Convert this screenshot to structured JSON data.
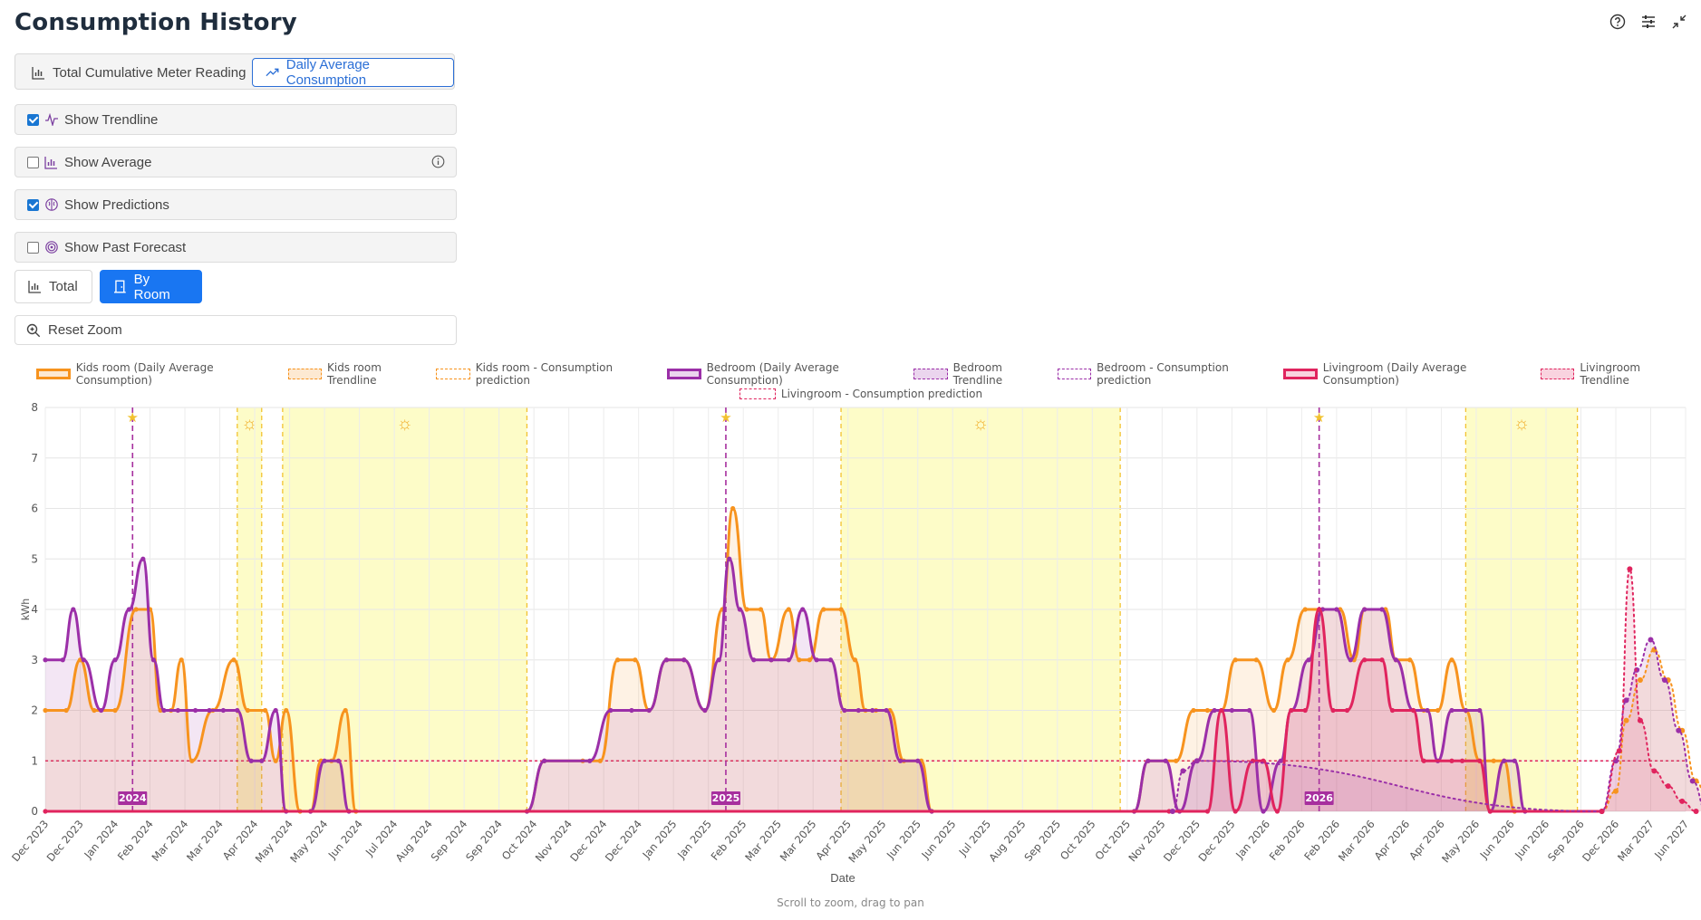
{
  "header": {
    "title": "Consumption History"
  },
  "top_icons": [
    "help-icon",
    "settings-sliders-icon",
    "collapse-icon"
  ],
  "view_mode": {
    "cumulative_label": "Total Cumulative Meter Reading",
    "daily_label": "Daily Average Consumption",
    "active": "daily"
  },
  "options": {
    "trendline": {
      "label": "Show Trendline",
      "checked": true
    },
    "average": {
      "label": "Show Average",
      "checked": false
    },
    "predictions": {
      "label": "Show Predictions",
      "checked": true
    },
    "past_forecast": {
      "label": "Show Past Forecast",
      "checked": false
    }
  },
  "grouping": {
    "total_label": "Total",
    "by_room_label": "By Room",
    "active": "by_room"
  },
  "reset_zoom_label": "Reset Zoom",
  "hint": "Scroll to zoom, drag to pan",
  "colors": {
    "kids": "#f7931e",
    "bedroom": "#9b2fa8",
    "living": "#e0245e",
    "summer_band": "#fdfcc8",
    "winter_line": "#a72f9e"
  },
  "chart_data": {
    "type": "line",
    "xlabel": "Date",
    "ylabel": "kWh",
    "ylim": [
      0,
      8
    ],
    "yticks": [
      0,
      1,
      2,
      3,
      4,
      5,
      6,
      7,
      8
    ],
    "x_ticks": [
      "Dec 2023",
      "Dec 2023",
      "Jan 2024",
      "Feb 2024",
      "Mar 2024",
      "Mar 2024",
      "Apr 2024",
      "May 2024",
      "May 2024",
      "Jun 2024",
      "Jul 2024",
      "Aug 2024",
      "Sep 2024",
      "Sep 2024",
      "Oct 2024",
      "Nov 2024",
      "Dec 2024",
      "Dec 2024",
      "Jan 2025",
      "Jan 2025",
      "Feb 2025",
      "Mar 2025",
      "Mar 2025",
      "Apr 2025",
      "May 2025",
      "Jun 2025",
      "Jun 2025",
      "Jul 2025",
      "Aug 2025",
      "Sep 2025",
      "Oct 2025",
      "Oct 2025",
      "Nov 2025",
      "Dec 2025",
      "Dec 2025",
      "Jan 2026",
      "Feb 2026",
      "Feb 2026",
      "Mar 2026",
      "Apr 2026",
      "Apr 2026",
      "May 2026",
      "Jun 2026",
      "Jun 2026",
      "Sep 2026",
      "Dec 2026",
      "Mar 2027",
      "Jun 2027"
    ],
    "grid": true,
    "legend_position": "top",
    "legend": [
      {
        "label": "Kids room (Daily Average Consumption)",
        "color": "#f7931e",
        "style": "solid"
      },
      {
        "label": "Kids room Trendline",
        "color": "#f7931e",
        "style": "dashed-fill"
      },
      {
        "label": "Kids room - Consumption prediction",
        "color": "#f7931e",
        "style": "dotted"
      },
      {
        "label": "Bedroom (Daily Average Consumption)",
        "color": "#9b2fa8",
        "style": "solid"
      },
      {
        "label": "Bedroom Trendline",
        "color": "#9b2fa8",
        "style": "dashed-fill"
      },
      {
        "label": "Bedroom - Consumption prediction",
        "color": "#9b2fa8",
        "style": "dotted"
      },
      {
        "label": "Livingroom (Daily Average Consumption)",
        "color": "#e0245e",
        "style": "solid"
      },
      {
        "label": "Livingroom Trendline",
        "color": "#e0245e",
        "style": "dashed-fill"
      },
      {
        "label": "Livingroom - Consumption prediction",
        "color": "#e0245e",
        "style": "dotted"
      }
    ],
    "year_markers": [
      {
        "label": "2024",
        "x": 2.5
      },
      {
        "label": "2025",
        "x": 19.5
      },
      {
        "label": "2026",
        "x": 36.5
      }
    ],
    "summer_bands": [
      [
        5.5,
        6.2
      ],
      [
        6.8,
        13.8
      ],
      [
        22.8,
        30.8
      ],
      [
        40.7,
        43.9
      ]
    ],
    "series": [
      {
        "name": "Kids room (Daily Average Consumption)",
        "color": "#f7931e",
        "points": [
          [
            0,
            2
          ],
          [
            0.6,
            2
          ],
          [
            1,
            3
          ],
          [
            1.4,
            2
          ],
          [
            2,
            2
          ],
          [
            2.6,
            4
          ],
          [
            3,
            4
          ],
          [
            3.3,
            2
          ],
          [
            3.6,
            2
          ],
          [
            3.9,
            3
          ],
          [
            4.2,
            1
          ],
          [
            4.8,
            2
          ],
          [
            5.4,
            3
          ],
          [
            5.8,
            2
          ],
          [
            6.3,
            2
          ],
          [
            6.6,
            1
          ],
          [
            6.9,
            2
          ],
          [
            7.3,
            0
          ],
          [
            7.6,
            0
          ],
          [
            7.9,
            1
          ],
          [
            8.2,
            1
          ],
          [
            8.6,
            2
          ],
          [
            8.9,
            0
          ],
          [
            13.8,
            0
          ],
          [
            14.3,
            1
          ],
          [
            15.4,
            1
          ],
          [
            15.9,
            1
          ],
          [
            16.4,
            3
          ],
          [
            16.9,
            3
          ],
          [
            17.3,
            2
          ],
          [
            17.8,
            3
          ],
          [
            18.3,
            3
          ],
          [
            18.9,
            2
          ],
          [
            19.4,
            4
          ],
          [
            19.7,
            6
          ],
          [
            20.1,
            4
          ],
          [
            20.5,
            4
          ],
          [
            20.8,
            3
          ],
          [
            21.3,
            4
          ],
          [
            21.6,
            3
          ],
          [
            21.9,
            3
          ],
          [
            22.3,
            4
          ],
          [
            22.8,
            4
          ],
          [
            23.2,
            3
          ],
          [
            23.5,
            2
          ],
          [
            23.8,
            2
          ],
          [
            24.2,
            2
          ],
          [
            24.6,
            1
          ],
          [
            25.1,
            1
          ],
          [
            25.4,
            0
          ],
          [
            31.2,
            0
          ],
          [
            31.6,
            1
          ],
          [
            32.4,
            1
          ],
          [
            32.9,
            2
          ],
          [
            33.3,
            2
          ],
          [
            33.7,
            2
          ],
          [
            34.1,
            3
          ],
          [
            34.7,
            3
          ],
          [
            35.2,
            2
          ],
          [
            35.6,
            3
          ],
          [
            36.1,
            4
          ],
          [
            36.6,
            4
          ],
          [
            37.1,
            4
          ],
          [
            37.5,
            3
          ],
          [
            37.8,
            4
          ],
          [
            38.4,
            4
          ],
          [
            38.7,
            3
          ],
          [
            39.1,
            3
          ],
          [
            39.5,
            2
          ],
          [
            39.9,
            2
          ],
          [
            40.3,
            3
          ],
          [
            40.7,
            2
          ],
          [
            41.1,
            1
          ],
          [
            41.5,
            1
          ],
          [
            41.8,
            1
          ],
          [
            42.1,
            0
          ],
          [
            44.6,
            0
          ]
        ]
      },
      {
        "name": "Bedroom (Daily Average Consumption)",
        "color": "#9b2fa8",
        "points": [
          [
            0,
            3
          ],
          [
            0.5,
            3
          ],
          [
            0.8,
            4
          ],
          [
            1.1,
            3
          ],
          [
            1.6,
            2
          ],
          [
            2,
            3
          ],
          [
            2.4,
            4
          ],
          [
            2.8,
            5
          ],
          [
            3.1,
            3
          ],
          [
            3.4,
            2
          ],
          [
            3.8,
            2
          ],
          [
            4.3,
            2
          ],
          [
            4.7,
            2
          ],
          [
            5.1,
            2
          ],
          [
            5.5,
            2
          ],
          [
            5.9,
            1
          ],
          [
            6.2,
            1
          ],
          [
            6.6,
            2
          ],
          [
            6.9,
            0
          ],
          [
            7.6,
            0
          ],
          [
            8,
            1
          ],
          [
            8.4,
            1
          ],
          [
            8.7,
            0
          ],
          [
            13.8,
            0
          ],
          [
            14.3,
            1
          ],
          [
            15.6,
            1
          ],
          [
            16.2,
            2
          ],
          [
            16.8,
            2
          ],
          [
            17.3,
            2
          ],
          [
            17.8,
            3
          ],
          [
            18.3,
            3
          ],
          [
            18.9,
            2
          ],
          [
            19.3,
            3
          ],
          [
            19.6,
            5
          ],
          [
            19.9,
            4
          ],
          [
            20.3,
            3
          ],
          [
            20.8,
            3
          ],
          [
            21.3,
            3
          ],
          [
            21.7,
            4
          ],
          [
            22.1,
            3
          ],
          [
            22.5,
            3
          ],
          [
            22.9,
            2
          ],
          [
            23.3,
            2
          ],
          [
            23.7,
            2
          ],
          [
            24.1,
            2
          ],
          [
            24.5,
            1
          ],
          [
            25,
            1
          ],
          [
            25.4,
            0
          ],
          [
            31.2,
            0
          ],
          [
            31.6,
            1
          ],
          [
            32.1,
            1
          ],
          [
            32.5,
            0
          ],
          [
            33,
            1
          ],
          [
            33.5,
            2
          ],
          [
            34,
            2
          ],
          [
            34.5,
            2
          ],
          [
            34.9,
            0
          ],
          [
            35.4,
            1
          ],
          [
            35.7,
            2
          ],
          [
            36.2,
            3
          ],
          [
            36.6,
            4
          ],
          [
            37,
            4
          ],
          [
            37.4,
            3
          ],
          [
            37.8,
            4
          ],
          [
            38.3,
            4
          ],
          [
            38.7,
            3
          ],
          [
            39.2,
            2
          ],
          [
            39.6,
            2
          ],
          [
            39.9,
            1
          ],
          [
            40.3,
            2
          ],
          [
            40.7,
            2
          ],
          [
            41.1,
            2
          ],
          [
            41.4,
            0
          ],
          [
            41.8,
            1
          ],
          [
            42.1,
            1
          ],
          [
            42.4,
            0
          ],
          [
            44.6,
            0
          ]
        ]
      },
      {
        "name": "Livingroom (Daily Average Consumption)",
        "color": "#e0245e",
        "points": [
          [
            0,
            0
          ],
          [
            32.2,
            0
          ],
          [
            33.3,
            0
          ],
          [
            33.7,
            2
          ],
          [
            34.1,
            0
          ],
          [
            34.6,
            1
          ],
          [
            34.9,
            1
          ],
          [
            35.3,
            0
          ],
          [
            35.7,
            2
          ],
          [
            36.1,
            2
          ],
          [
            36.5,
            4
          ],
          [
            36.9,
            2
          ],
          [
            37.3,
            2
          ],
          [
            37.8,
            3
          ],
          [
            38.3,
            3
          ],
          [
            38.6,
            2
          ],
          [
            39.2,
            2
          ],
          [
            39.5,
            1
          ],
          [
            40.3,
            1
          ],
          [
            40.6,
            1
          ],
          [
            41.1,
            1
          ],
          [
            41.4,
            0
          ],
          [
            44.6,
            0
          ]
        ]
      },
      {
        "name": "Kids room - Consumption prediction",
        "color": "#f7931e",
        "dotted": true,
        "points": [
          [
            44.6,
            0
          ],
          [
            45,
            0.4
          ],
          [
            45.3,
            1.8
          ],
          [
            45.7,
            2.6
          ],
          [
            46.1,
            3.2
          ],
          [
            46.5,
            2.6
          ],
          [
            46.9,
            1.6
          ],
          [
            47.3,
            0.6
          ],
          [
            47.7,
            0
          ],
          [
            48.3,
            0
          ]
        ]
      },
      {
        "name": "Bedroom - Consumption prediction",
        "color": "#9b2fa8",
        "dotted": true,
        "points": [
          [
            32.3,
            0
          ],
          [
            32.6,
            0.8
          ],
          [
            33,
            1
          ],
          [
            44.6,
            0
          ],
          [
            45,
            1
          ],
          [
            45.3,
            2.2
          ],
          [
            45.6,
            2.8
          ],
          [
            46,
            3.4
          ],
          [
            46.4,
            2.6
          ],
          [
            46.8,
            1.6
          ],
          [
            47.2,
            0.6
          ],
          [
            47.6,
            0
          ]
        ]
      },
      {
        "name": "Livingroom - Consumption prediction",
        "color": "#e0245e",
        "dotted": true,
        "points": [
          [
            44.6,
            0
          ],
          [
            45.1,
            1.2
          ],
          [
            45.4,
            4.8
          ],
          [
            45.7,
            1.8
          ],
          [
            46.1,
            0.8
          ],
          [
            46.5,
            0.5
          ],
          [
            46.9,
            0.2
          ],
          [
            47.3,
            0
          ]
        ]
      }
    ],
    "horizontal_lines": [
      {
        "y": 1,
        "color": "#e0245e",
        "style": "dotted"
      }
    ]
  }
}
